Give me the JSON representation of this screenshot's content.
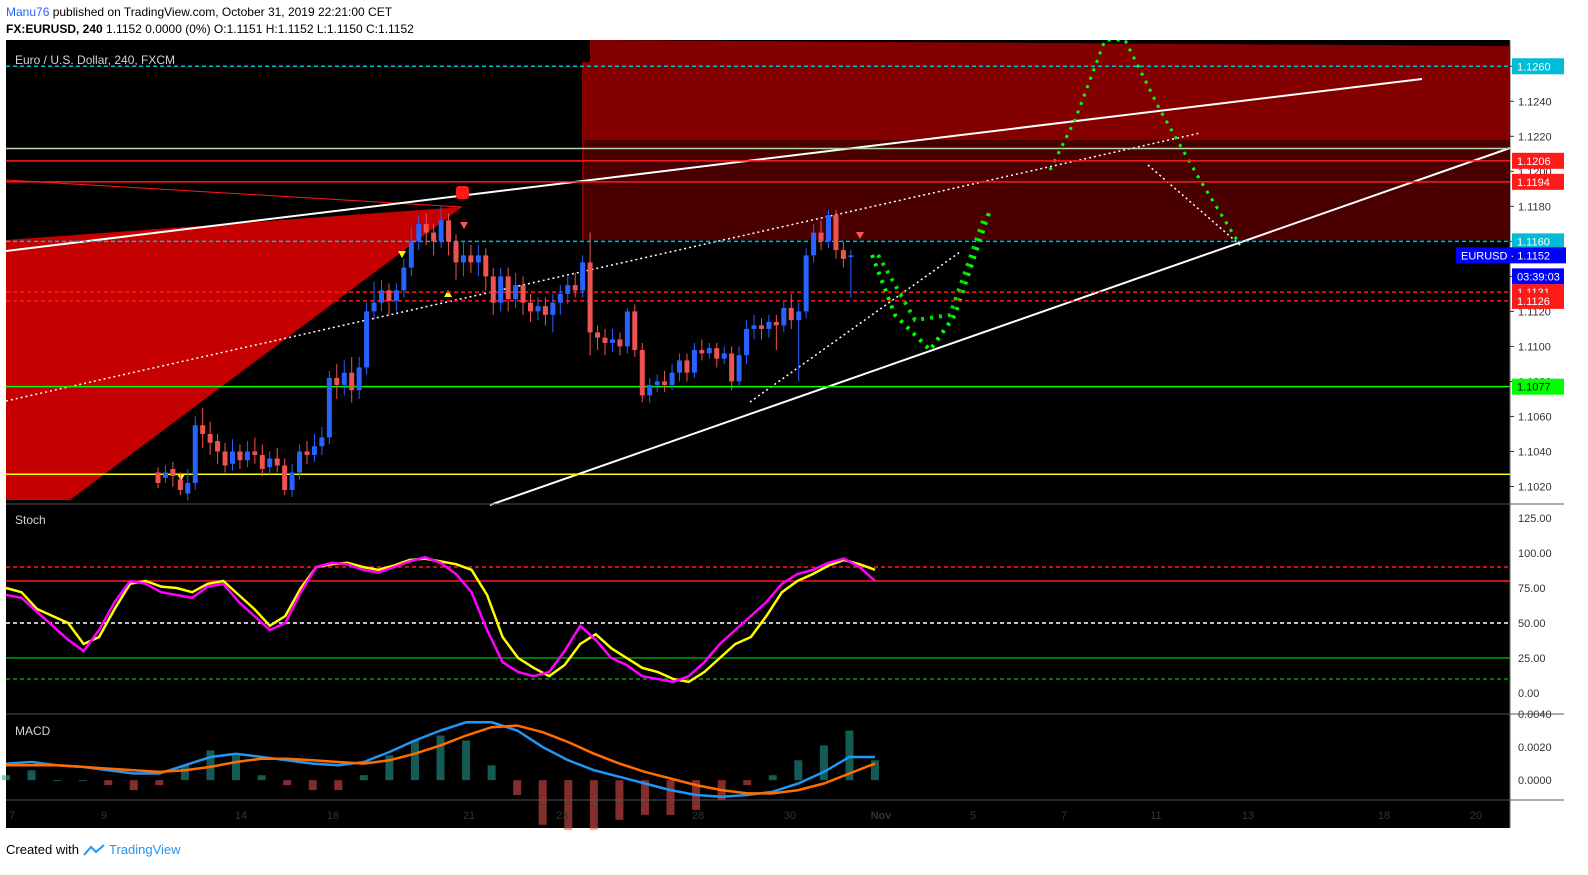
{
  "header": {
    "author": "Manu76",
    "published": " published on TradingView.com, October 31, 2019 22:21:00 CET",
    "symbol_line": "FX:EURUSD, 240",
    "ohlc": "1.1152 0.0000 (0%) O:1.1151 H:1.1152 L:1.1150 C:1.1152"
  },
  "footer": {
    "created": "Created with",
    "brand": "TradingView"
  },
  "colors": {
    "bg": "#000000",
    "up": "#2962ff",
    "down": "#ef5350",
    "zone": "#8b0000",
    "line_red": "#ff1a1a",
    "line_green": "#00ff00",
    "line_yellow": "#ffff00",
    "stoch_yellow": "#ffff00",
    "stoch_pink": "#ff00ff",
    "macd_blue": "#2196f3",
    "macd_orange": "#ff6d00"
  },
  "chart_data": [
    {
      "type": "candlestick",
      "title": "Euro / U.S. Dollar, 240, FXCM",
      "ylim": [
        1.101,
        1.1275
      ],
      "price_ticks": [
        "1.1020",
        "1.1040",
        "1.1060",
        "1.1080",
        "1.1100",
        "1.1120",
        "1.1140",
        "1.1160",
        "1.1180",
        "1.1200",
        "1.1220",
        "1.1240",
        "1.1260"
      ],
      "x_ticks": [
        "7",
        "9",
        "14",
        "16",
        "21",
        "23",
        "28",
        "30",
        "Nov",
        "5",
        "7",
        "11",
        "13",
        "18",
        "20"
      ],
      "price_labels": [
        {
          "text": "1.1260",
          "value": 1.126,
          "color": "#00bcd4"
        },
        {
          "text": "1.1206",
          "value": 1.1206,
          "color": "#ff1a1a"
        },
        {
          "text": "1.1194",
          "value": 1.1194,
          "color": "#ff1a1a"
        },
        {
          "text": "1.1160",
          "value": 1.116,
          "color": "#00bcd4"
        },
        {
          "text": "EURUSD · 1.1152",
          "value": 1.1152,
          "color": "#0000ff"
        },
        {
          "text": "03:39:03",
          "value": 1.114,
          "color": "#0000ff"
        },
        {
          "text": "1.1131",
          "value": 1.1131,
          "color": "#ff1a1a"
        },
        {
          "text": "1.1126",
          "value": 1.1126,
          "color": "#ff1a1a"
        },
        {
          "text": "1.1077",
          "value": 1.1077,
          "color": "#00ff00"
        }
      ],
      "horizontal_levels": [
        {
          "value": 1.126,
          "color": "#00bcd4",
          "style": "dashed"
        },
        {
          "value": 1.1213,
          "color": "#b6d7a8",
          "style": "solid"
        },
        {
          "value": 1.1206,
          "color": "#ff1a1a",
          "style": "solid"
        },
        {
          "value": 1.1194,
          "color": "#ff1a1a",
          "style": "solid"
        },
        {
          "value": 1.116,
          "color": "#00bcd4",
          "style": "dashed"
        },
        {
          "value": 1.1131,
          "color": "#ff1a1a",
          "style": "dashed"
        },
        {
          "value": 1.1126,
          "color": "#ff1a1a",
          "style": "dashed"
        },
        {
          "value": 1.1077,
          "color": "#00ff00",
          "style": "solid"
        },
        {
          "value": 1.1027,
          "color": "#ffff00",
          "style": "solid"
        }
      ],
      "candles": [
        [
          1.1028,
          1.1022,
          1.1031,
          1.1019
        ],
        [
          1.1025,
          1.1028,
          1.1032,
          1.1022
        ],
        [
          1.103,
          1.1026,
          1.1034,
          1.102
        ],
        [
          1.1024,
          1.1018,
          1.1028,
          1.1015
        ],
        [
          1.1016,
          1.1022,
          1.103,
          1.1012
        ],
        [
          1.1022,
          1.1055,
          1.106,
          1.1018
        ],
        [
          1.1055,
          1.105,
          1.1065,
          1.1042
        ],
        [
          1.105,
          1.1045,
          1.1057,
          1.1038
        ],
        [
          1.1046,
          1.104,
          1.105,
          1.1033
        ],
        [
          1.104,
          1.1032,
          1.1045,
          1.1028
        ],
        [
          1.1033,
          1.104,
          1.1047,
          1.1029
        ],
        [
          1.104,
          1.1035,
          1.1044,
          1.103
        ],
        [
          1.1035,
          1.104,
          1.1046,
          1.1031
        ],
        [
          1.104,
          1.1038,
          1.1048,
          1.1033
        ],
        [
          1.1038,
          1.103,
          1.1044,
          1.1026
        ],
        [
          1.1031,
          1.1036,
          1.104,
          1.1027
        ],
        [
          1.1036,
          1.1032,
          1.1042,
          1.1028
        ],
        [
          1.1032,
          1.1018,
          1.1036,
          1.1015
        ],
        [
          1.1018,
          1.1028,
          1.1033,
          1.1014
        ],
        [
          1.1028,
          1.104,
          1.1044,
          1.1024
        ],
        [
          1.104,
          1.1038,
          1.1046,
          1.1033
        ],
        [
          1.1038,
          1.1043,
          1.105,
          1.1034
        ],
        [
          1.1043,
          1.1048,
          1.1054,
          1.1038
        ],
        [
          1.1048,
          1.1082,
          1.1086,
          1.1044
        ],
        [
          1.1082,
          1.1078,
          1.109,
          1.107
        ],
        [
          1.1078,
          1.1085,
          1.1092,
          1.1072
        ],
        [
          1.1085,
          1.1075,
          1.1094,
          1.1068
        ],
        [
          1.1075,
          1.1088,
          1.1094,
          1.107
        ],
        [
          1.1088,
          1.112,
          1.1125,
          1.1084
        ],
        [
          1.112,
          1.1125,
          1.1137,
          1.1115
        ],
        [
          1.1125,
          1.1132,
          1.1138,
          1.112
        ],
        [
          1.1132,
          1.1126,
          1.1136,
          1.1118
        ],
        [
          1.1126,
          1.1132,
          1.1136,
          1.112
        ],
        [
          1.1132,
          1.1145,
          1.115,
          1.1128
        ],
        [
          1.1145,
          1.116,
          1.1168,
          1.114
        ],
        [
          1.116,
          1.117,
          1.1175,
          1.1155
        ],
        [
          1.117,
          1.1165,
          1.1176,
          1.1158
        ],
        [
          1.1165,
          1.116,
          1.117,
          1.1152
        ],
        [
          1.116,
          1.1172,
          1.118,
          1.1156
        ],
        [
          1.1172,
          1.116,
          1.1176,
          1.1152
        ],
        [
          1.116,
          1.1148,
          1.1164,
          1.1138
        ],
        [
          1.1148,
          1.1152,
          1.116,
          1.114
        ],
        [
          1.1152,
          1.1148,
          1.1158,
          1.1142
        ],
        [
          1.1148,
          1.1152,
          1.1158,
          1.114
        ],
        [
          1.1152,
          1.114,
          1.1156,
          1.1132
        ],
        [
          1.114,
          1.1125,
          1.1145,
          1.1118
        ],
        [
          1.1125,
          1.114,
          1.1145,
          1.112
        ],
        [
          1.114,
          1.1127,
          1.1145,
          1.112
        ],
        [
          1.1127,
          1.1135,
          1.1142,
          1.1122
        ],
        [
          1.1135,
          1.1125,
          1.114,
          1.1118
        ],
        [
          1.1125,
          1.112,
          1.113,
          1.1114
        ],
        [
          1.112,
          1.1123,
          1.1128,
          1.1115
        ],
        [
          1.1123,
          1.1118,
          1.1128,
          1.1112
        ],
        [
          1.1118,
          1.1125,
          1.113,
          1.1108
        ],
        [
          1.1125,
          1.113,
          1.1135,
          1.1118
        ],
        [
          1.113,
          1.1135,
          1.114,
          1.1124
        ],
        [
          1.1135,
          1.1132,
          1.1142,
          1.1128
        ],
        [
          1.1132,
          1.1148,
          1.1152,
          1.1128
        ],
        [
          1.1148,
          1.1108,
          1.1165,
          1.1095
        ],
        [
          1.1108,
          1.1105,
          1.1112,
          1.1098
        ],
        [
          1.1105,
          1.1102,
          1.111,
          1.1095
        ],
        [
          1.1102,
          1.1104,
          1.111,
          1.1097
        ],
        [
          1.1104,
          1.11,
          1.1108,
          1.1095
        ],
        [
          1.11,
          1.112,
          1.1122,
          1.1096
        ],
        [
          1.112,
          1.1098,
          1.1124,
          1.1094
        ],
        [
          1.1098,
          1.1072,
          1.1102,
          1.1068
        ],
        [
          1.1072,
          1.1078,
          1.1082,
          1.1068
        ],
        [
          1.1078,
          1.108,
          1.1084,
          1.1074
        ],
        [
          1.108,
          1.1078,
          1.1086,
          1.1074
        ],
        [
          1.1078,
          1.1085,
          1.109,
          1.1075
        ],
        [
          1.1085,
          1.1092,
          1.1096,
          1.108
        ],
        [
          1.1092,
          1.1085,
          1.1096,
          1.108
        ],
        [
          1.1085,
          1.1098,
          1.1102,
          1.1082
        ],
        [
          1.1098,
          1.1096,
          1.1104,
          1.1092
        ],
        [
          1.1096,
          1.1099,
          1.1102,
          1.1093
        ],
        [
          1.1099,
          1.1093,
          1.1102,
          1.1088
        ],
        [
          1.1093,
          1.1096,
          1.11,
          1.109
        ],
        [
          1.1096,
          1.108,
          1.11,
          1.1075
        ],
        [
          1.108,
          1.1095,
          1.11,
          1.1076
        ],
        [
          1.1095,
          1.111,
          1.1115,
          1.109
        ],
        [
          1.111,
          1.1112,
          1.1118,
          1.1104
        ],
        [
          1.1112,
          1.111,
          1.1116,
          1.1104
        ],
        [
          1.111,
          1.1114,
          1.1118,
          1.1105
        ],
        [
          1.1114,
          1.1112,
          1.1118,
          1.1098
        ],
        [
          1.1112,
          1.1122,
          1.1126,
          1.1108
        ],
        [
          1.1122,
          1.1115,
          1.113,
          1.111
        ],
        [
          1.1115,
          1.112,
          1.1125,
          1.108
        ],
        [
          1.112,
          1.1152,
          1.1156,
          1.1116
        ],
        [
          1.1152,
          1.1165,
          1.117,
          1.1148
        ],
        [
          1.1165,
          1.116,
          1.1172,
          1.1155
        ],
        [
          1.116,
          1.1175,
          1.1178,
          1.1156
        ],
        [
          1.1175,
          1.1155,
          1.1178,
          1.115
        ],
        [
          1.1155,
          1.115,
          1.116,
          1.1145
        ],
        [
          1.1151,
          1.1152,
          1.1155,
          1.1128
        ]
      ]
    },
    {
      "type": "line",
      "title": "Stoch",
      "ylim": [
        -15,
        135
      ],
      "y_ticks": [
        "125.00",
        "100.00",
        "75.00",
        "50.00",
        "25.00",
        "0.00"
      ],
      "levels": [
        {
          "value": 90,
          "color": "#ff1a1a",
          "style": "dashed"
        },
        {
          "value": 80,
          "color": "#ff1a1a",
          "style": "solid"
        },
        {
          "value": 50,
          "color": "#ffffff",
          "style": "dashed"
        },
        {
          "value": 25,
          "color": "#00a000",
          "style": "solid"
        },
        {
          "value": 10,
          "color": "#00a000",
          "style": "dashed"
        }
      ],
      "series": [
        {
          "values": [
            75,
            72,
            60,
            55,
            50,
            35,
            40,
            60,
            78,
            80,
            76,
            75,
            72,
            78,
            80,
            70,
            60,
            48,
            55,
            75,
            90,
            92,
            93,
            90,
            88,
            91,
            95,
            96,
            94,
            92,
            88,
            70,
            40,
            25,
            18,
            12,
            20,
            35,
            42,
            32,
            25,
            18,
            15,
            10,
            8,
            15,
            25,
            35,
            40,
            55,
            72,
            80,
            85,
            91,
            95,
            92,
            88
          ]
        },
        {
          "values": [
            70,
            68,
            58,
            48,
            38,
            30,
            45,
            65,
            80,
            78,
            72,
            70,
            68,
            76,
            78,
            65,
            55,
            45,
            50,
            72,
            90,
            93,
            92,
            88,
            86,
            90,
            94,
            97,
            93,
            85,
            72,
            45,
            22,
            15,
            12,
            15,
            30,
            48,
            38,
            25,
            20,
            12,
            10,
            8,
            12,
            22,
            35,
            45,
            55,
            65,
            78,
            85,
            88,
            93,
            96,
            90,
            80
          ]
        }
      ]
    },
    {
      "type": "line",
      "title": "MACD",
      "ylim": [
        -0.0012,
        0.004
      ],
      "y_ticks": [
        "0.0040",
        "0.0020",
        "0.0000"
      ],
      "series": [
        {
          "values": [
            0.001,
            0.0011,
            0.0009,
            0.0008,
            0.0006,
            0.0004,
            0.0004,
            0.0009,
            0.0014,
            0.0016,
            0.0014,
            0.0012,
            0.001,
            0.0009,
            0.0011,
            0.0017,
            0.0024,
            0.003,
            0.0035,
            0.0035,
            0.003,
            0.002,
            0.0012,
            0.0006,
            0.0002,
            -0.0002,
            -0.0006,
            -0.0009,
            -0.001,
            -0.0009,
            -0.0007,
            -0.0002,
            0.0005,
            0.0014,
            0.0014
          ]
        },
        {
          "values": [
            0.0009,
            0.0009,
            0.0009,
            0.0008,
            0.0007,
            0.0006,
            0.0005,
            0.0006,
            0.0008,
            0.0011,
            0.0013,
            0.0013,
            0.0012,
            0.0011,
            0.001,
            0.0012,
            0.0016,
            0.0021,
            0.0027,
            0.0032,
            0.0033,
            0.0029,
            0.0023,
            0.0016,
            0.001,
            0.0005,
            0.0001,
            -0.0003,
            -0.0006,
            -0.0008,
            -0.0008,
            -0.0006,
            -0.0002,
            0.0004,
            0.001
          ]
        }
      ]
    }
  ]
}
